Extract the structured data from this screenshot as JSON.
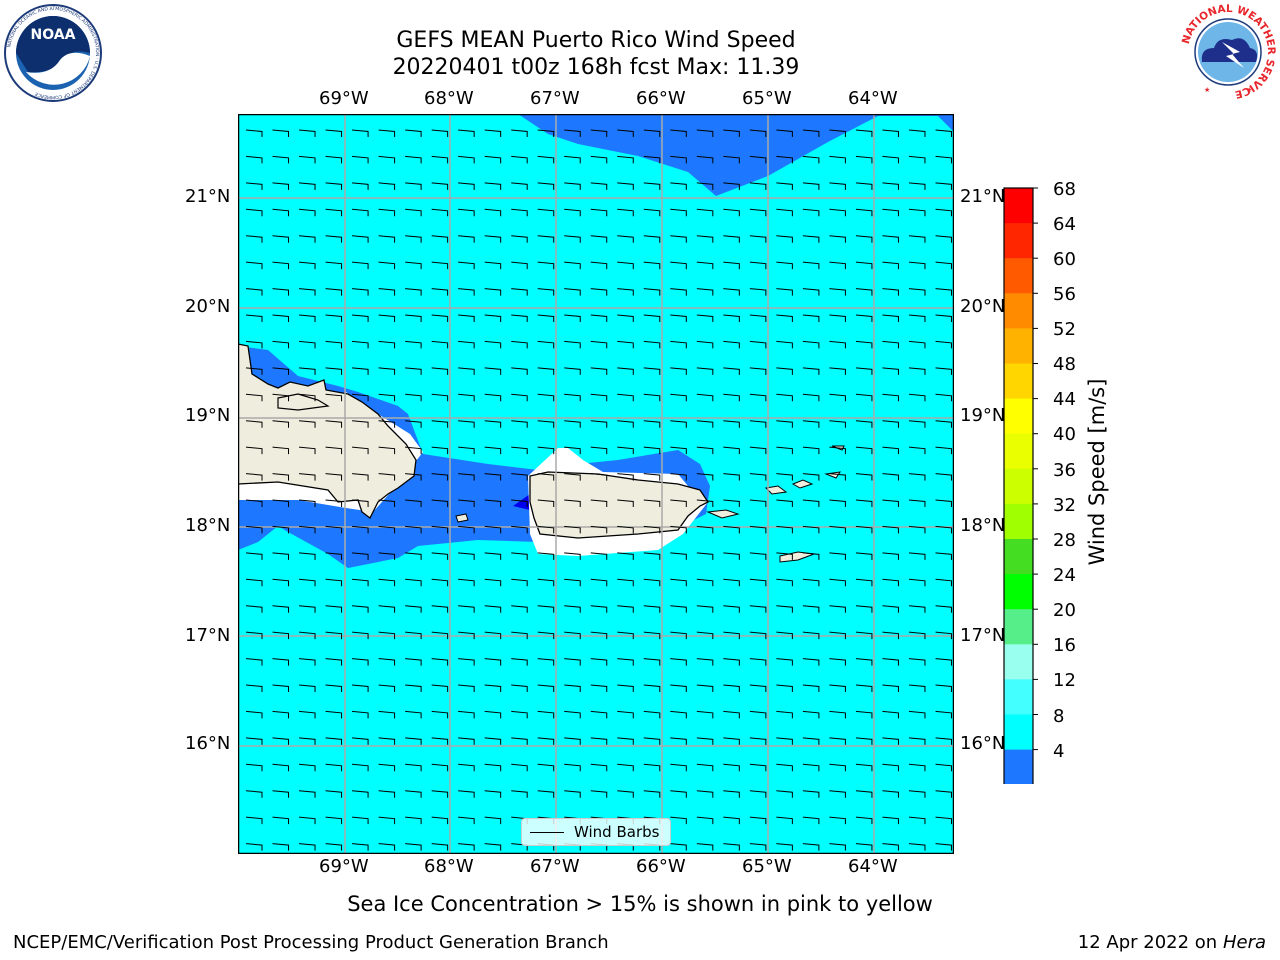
{
  "header": {
    "title_line1": "GEFS MEAN Puerto Rico Wind Speed",
    "title_line2": "20220401 t00z 168h fcst   Max: 11.39"
  },
  "logos": {
    "left": {
      "label": "NOAA",
      "ring_text": "NATIONAL OCEANIC AND ATMOSPHERIC ADMINISTRATION · U.S. DEPARTMENT OF COMMERCE"
    },
    "right": {
      "ring_text": "NATIONAL WEATHER SERVICE"
    }
  },
  "map": {
    "lon_labels": [
      "69°W",
      "68°W",
      "67°W",
      "66°W",
      "65°W",
      "64°W"
    ],
    "lat_labels": [
      "21°N",
      "20°N",
      "19°N",
      "18°N",
      "17°N",
      "16°N"
    ],
    "background_color": "#00ffff",
    "land_color": "#efedde",
    "barb_rows": 28,
    "barb_cols": 27
  },
  "legend": {
    "label": "Wind Barbs"
  },
  "colorbar": {
    "label": "Wind Speed [m/s]",
    "ticks": [
      "68",
      "64",
      "60",
      "56",
      "52",
      "48",
      "44",
      "40",
      "36",
      "32",
      "28",
      "24",
      "20",
      "16",
      "12",
      "8",
      "4"
    ],
    "colors": [
      "#ff0000",
      "#ff2600",
      "#ff5a00",
      "#ff8c00",
      "#ffb300",
      "#ffd600",
      "#ffff00",
      "#eaff00",
      "#ccff00",
      "#a0ff00",
      "#44dd22",
      "#00ff00",
      "#55ee88",
      "#99ffee",
      "#44ffff",
      "#00ffff",
      "#1e78ff"
    ],
    "extend_color": "#0000ee"
  },
  "notes": {
    "sea_ice": "Sea Ice Concentration > 15% is shown in pink to yellow"
  },
  "footer": {
    "left": "NCEP/EMC/Verification Post Processing Product Generation Branch",
    "date": "12 Apr 2022 on ",
    "host": "Hera"
  }
}
